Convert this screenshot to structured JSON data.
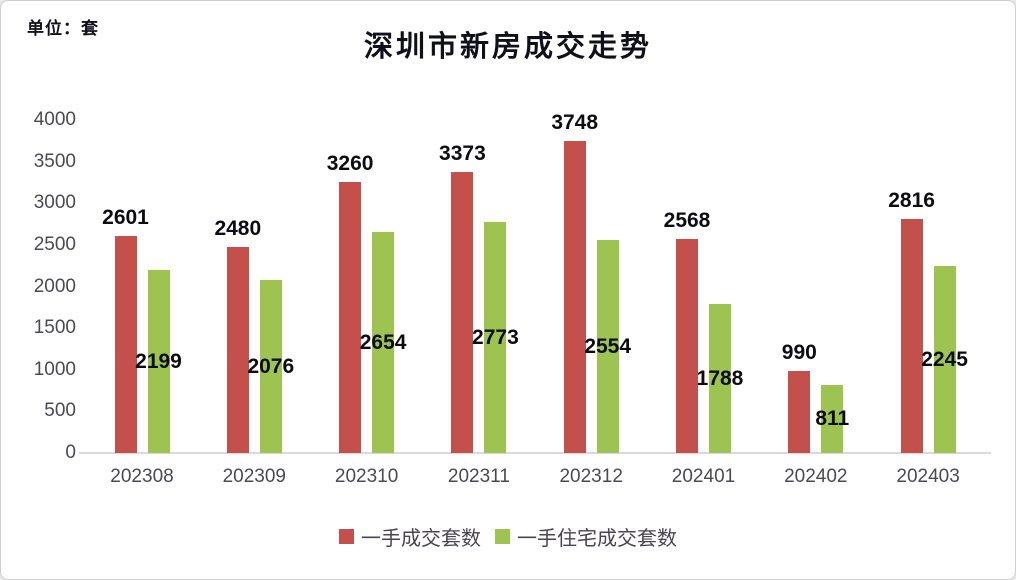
{
  "unit_label": "单位：套",
  "title": "深圳市新房成交走势",
  "chart_data": {
    "type": "bar",
    "title": "深圳市新房成交走势",
    "unit": "单位：套",
    "categories": [
      "202308",
      "202309",
      "202310",
      "202311",
      "202312",
      "202401",
      "202402",
      "202403"
    ],
    "series": [
      {
        "name": "一手成交套数",
        "color": "#c3504b",
        "values": [
          2601,
          2480,
          3260,
          3373,
          3748,
          2568,
          990,
          2816
        ],
        "value_label_position": "outside-top"
      },
      {
        "name": "一手住宅成交套数",
        "color": "#9dc351",
        "values": [
          2199,
          2076,
          2654,
          2773,
          2554,
          1788,
          811,
          2245
        ],
        "value_label_position": "inside-center"
      }
    ],
    "ylim": [
      0,
      4000
    ],
    "yticks": [
      0,
      500,
      1000,
      1500,
      2000,
      2500,
      3000,
      3500,
      4000
    ],
    "grid": false,
    "legend_position": "bottom",
    "axis_line_color": "#d9d9d9",
    "tick_label_color": "#4a4a55",
    "value_label_color": "#0c0c14"
  }
}
